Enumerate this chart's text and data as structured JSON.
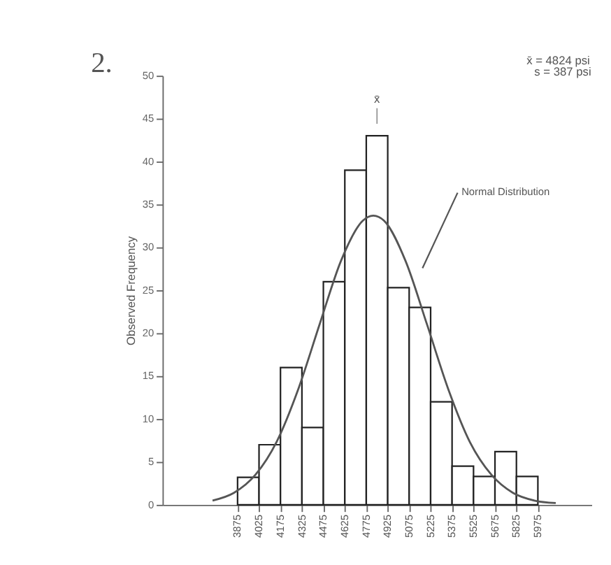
{
  "chart_data": {
    "type": "histogram",
    "bins": [
      3875,
      4025,
      4175,
      4325,
      4475,
      4625,
      4775,
      4925,
      5075,
      5225,
      5375,
      5525,
      5675,
      5825,
      5975
    ],
    "values": [
      3.2,
      7,
      16,
      9,
      26,
      39,
      43,
      25.3,
      23,
      12,
      4.5,
      3.3,
      6.2,
      3.3
    ],
    "color": "#ffffff",
    "series": [
      {
        "type": "line",
        "color": "#555555",
        "x": [
          3700,
          3850,
          4000,
          4150,
          4300,
          4450,
          4600,
          4750,
          4824,
          4900,
          5050,
          5200,
          5350,
          5500,
          5650,
          5800,
          5950,
          6100
        ],
        "values": [
          0.5,
          1.4,
          3.5,
          7.4,
          13.5,
          21.1,
          28.5,
          33.1,
          33.7,
          33.1,
          28.4,
          21.0,
          13.4,
          7.3,
          3.5,
          1.4,
          0.5,
          0.2
        ]
      }
    ],
    "ylabel": "Observed Frequency",
    "xlim": [
      3350,
      6350
    ],
    "ylim": [
      0,
      50
    ],
    "xticks": [
      3875,
      4025,
      4175,
      4325,
      4475,
      4625,
      4775,
      4925,
      5075,
      5225,
      5375,
      5525,
      5675,
      5825,
      5975
    ],
    "yticks": [
      0,
      5,
      10,
      15,
      20,
      25,
      30,
      35,
      40,
      45,
      50
    ],
    "grid": false,
    "annotations": [
      "2.",
      "x̄ = 4824 psi",
      "s =   387 psi",
      "Normal Distribution",
      "x̄"
    ]
  }
}
